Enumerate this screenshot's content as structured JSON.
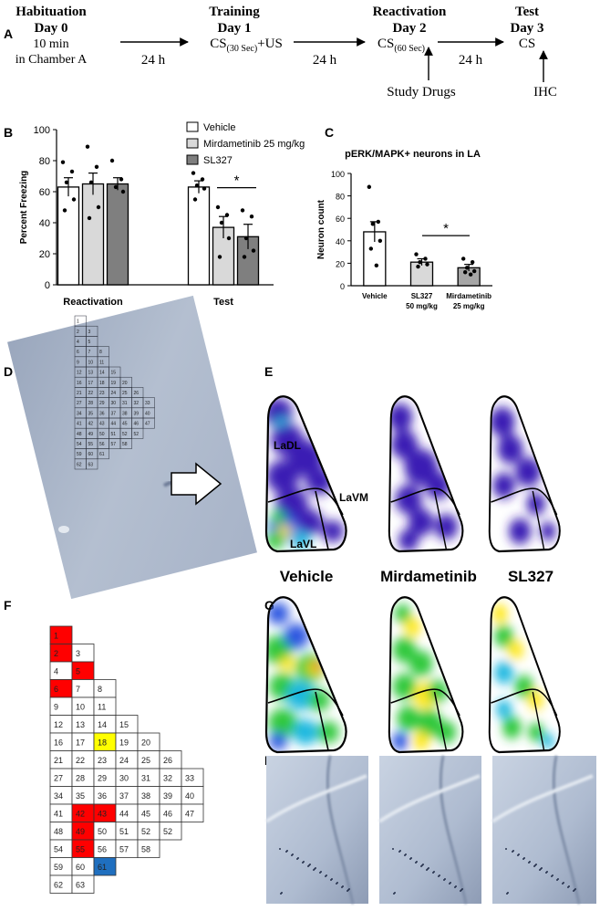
{
  "panel_labels": [
    "A",
    "B",
    "C",
    "D",
    "E",
    "F",
    "G",
    "H"
  ],
  "timeline": {
    "habituation": {
      "title": "Habituation",
      "day": "Day 0",
      "lines": [
        "10 min",
        "in Chamber A"
      ]
    },
    "training": {
      "title": "Training",
      "day": "Day 1",
      "cs": "CS",
      "cs_sub": "(30 Sec)",
      "cs_tail": "+US"
    },
    "reactivation": {
      "title": "Reactivation",
      "day": "Day 2",
      "cs": "CS",
      "cs_sub": "(60 Sec)",
      "note": "Study Drugs"
    },
    "test": {
      "title": "Test",
      "day": "Day 3",
      "cs": "CS",
      "note": "IHC"
    },
    "intervals": [
      "24 h",
      "24 h",
      "24 h"
    ]
  },
  "chart_data": [
    {
      "type": "bar",
      "y_label": "Percent Freezing",
      "categories": [
        "Reactivation",
        "Test"
      ],
      "series": [
        {
          "name": "Vehicle",
          "color": "#ffffff",
          "values": [
            63,
            63
          ],
          "errors": [
            6,
            4
          ],
          "points": [
            [
              79,
              73,
              66,
              55,
              48
            ],
            [
              72,
              68,
              64,
              62,
              55
            ]
          ]
        },
        {
          "name": "Mirdametinib 25 mg/kg",
          "color": "#d9d9d9",
          "values": [
            65,
            37
          ],
          "errors": [
            7,
            7
          ],
          "points": [
            [
              89,
              76,
              66,
              50,
              43
            ],
            [
              50,
              45,
              40,
              30,
              18
            ]
          ]
        },
        {
          "name": "SL327",
          "color": "#7f7f7f",
          "values": [
            65,
            31
          ],
          "errors": [
            4,
            8
          ],
          "points": [
            [
              80,
              68,
              63,
              60
            ],
            [
              48,
              44,
              30,
              22,
              18
            ]
          ]
        }
      ],
      "ylim": [
        0,
        100
      ],
      "yticks": [
        0,
        20,
        40,
        60,
        80,
        100
      ],
      "legend": "right",
      "annotation": "*"
    },
    {
      "type": "bar",
      "title": "pERK/MAPK+ neurons in LA",
      "y_label": "Neuron count",
      "categories": [
        "Vehicle",
        "SL327",
        "Mirdametinib"
      ],
      "category_sublabels": [
        null,
        "50 mg/kg",
        "25 mg/kg"
      ],
      "values": [
        48,
        21,
        16
      ],
      "errors": [
        9,
        3,
        3
      ],
      "points": [
        [
          88,
          57,
          55,
          40,
          33,
          18
        ],
        [
          28,
          24,
          21,
          19,
          17
        ],
        [
          24,
          21,
          16,
          13,
          12,
          10
        ]
      ],
      "colors": [
        "#ffffff",
        "#d9d9d9",
        "#a6a6a6"
      ],
      "ylim": [
        0,
        100
      ],
      "yticks": [
        0,
        20,
        40,
        60,
        80,
        100
      ],
      "annotation": "*"
    }
  ],
  "panel_e": {
    "regions": [
      "LaDL",
      "LaVM",
      "LaVL"
    ]
  },
  "panel_f": {
    "rows": [
      [
        {
          "label": "1",
          "fill": "#ff0000"
        }
      ],
      [
        {
          "label": "2",
          "fill": "#ff0000"
        },
        "3"
      ],
      [
        "4",
        {
          "label": "5",
          "fill": "#ff0000"
        }
      ],
      [
        {
          "label": "6",
          "fill": "#ff0000"
        },
        "7",
        "8"
      ],
      [
        "9",
        "10",
        "11"
      ],
      [
        "12",
        "13",
        "14",
        "15"
      ],
      [
        "16",
        "17",
        {
          "label": "18",
          "fill": "#ffff00"
        },
        "19",
        "20"
      ],
      [
        "21",
        "22",
        "23",
        "24",
        "25",
        "26"
      ],
      [
        "27",
        "28",
        "29",
        "30",
        "31",
        "32",
        "33"
      ],
      [
        "34",
        "35",
        "36",
        "37",
        "38",
        "39",
        "40"
      ],
      [
        "41",
        {
          "label": "42",
          "fill": "#ff0000"
        },
        {
          "label": "43",
          "fill": "#ff0000"
        },
        "44",
        "45",
        "46",
        "47"
      ],
      [
        "48",
        {
          "label": "49",
          "fill": "#ff0000"
        },
        "50",
        "51",
        "52",
        "52"
      ],
      [
        "54",
        {
          "label": "55",
          "fill": "#ff0000"
        },
        "56",
        "57",
        "58"
      ],
      [
        "59",
        "60",
        {
          "label": "61",
          "fill": "#1f6fbf"
        }
      ],
      [
        "62",
        "63"
      ]
    ]
  },
  "panel_g": {
    "groups": [
      "Vehicle",
      "Mirdametinib",
      "SL327"
    ]
  }
}
